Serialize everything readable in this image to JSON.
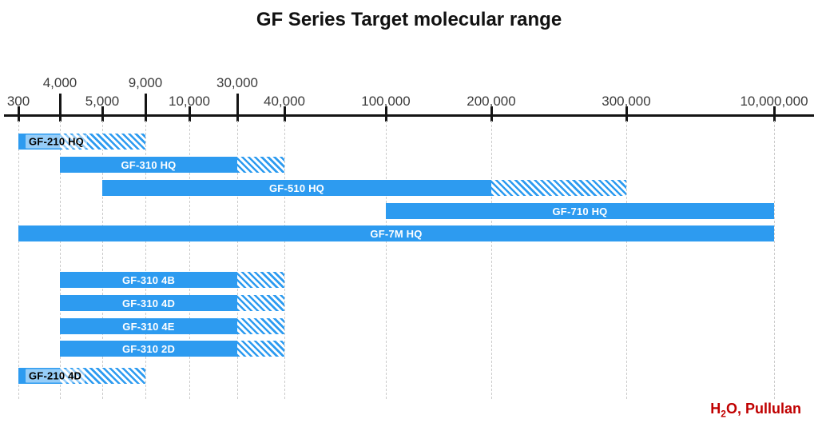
{
  "chart_data": {
    "type": "bar",
    "orientation": "horizontal-range",
    "title": "GF Series Target molecular range",
    "x_axis": {
      "scale": "log-like",
      "ticks": [
        {
          "label": "300",
          "value": 300,
          "label_row": "lower"
        },
        {
          "label": "4,000",
          "value": 4000,
          "label_row": "upper"
        },
        {
          "label": "5,000",
          "value": 5000,
          "label_row": "lower"
        },
        {
          "label": "9,000",
          "value": 9000,
          "label_row": "upper"
        },
        {
          "label": "10,000",
          "value": 10000,
          "label_row": "lower"
        },
        {
          "label": "30,000",
          "value": 30000,
          "label_row": "upper"
        },
        {
          "label": "40,000",
          "value": 40000,
          "label_row": "lower"
        },
        {
          "label": "100,000",
          "value": 100000,
          "label_row": "lower"
        },
        {
          "label": "200,000",
          "value": 200000,
          "label_row": "lower"
        },
        {
          "label": "300,000",
          "value": 300000,
          "label_row": "lower"
        },
        {
          "label": "10,000,000",
          "value": 10000000,
          "label_row": "lower"
        }
      ]
    },
    "series": [
      {
        "name": "GF-210 HQ",
        "solid_range": [
          300,
          4000
        ],
        "extended_range": [
          4000,
          9000
        ],
        "label_style": "dark",
        "group": 1
      },
      {
        "name": "GF-310 HQ",
        "solid_range": [
          4000,
          30000
        ],
        "extended_range": [
          30000,
          40000
        ],
        "label_style": "light",
        "group": 1
      },
      {
        "name": "GF-510 HQ",
        "solid_range": [
          5000,
          200000
        ],
        "extended_range": [
          200000,
          300000
        ],
        "label_style": "light",
        "group": 1
      },
      {
        "name": "GF-710 HQ",
        "solid_range": [
          100000,
          10000000
        ],
        "extended_range": null,
        "label_style": "light",
        "group": 1
      },
      {
        "name": "GF-7M HQ",
        "solid_range": [
          300,
          10000000
        ],
        "extended_range": null,
        "label_style": "light",
        "group": 1
      },
      {
        "name": "GF-310 4B",
        "solid_range": [
          4000,
          30000
        ],
        "extended_range": [
          30000,
          40000
        ],
        "label_style": "light",
        "group": 2
      },
      {
        "name": "GF-310 4D",
        "solid_range": [
          4000,
          30000
        ],
        "extended_range": [
          30000,
          40000
        ],
        "label_style": "light",
        "group": 2
      },
      {
        "name": "GF-310 4E",
        "solid_range": [
          4000,
          30000
        ],
        "extended_range": [
          30000,
          40000
        ],
        "label_style": "light",
        "group": 2
      },
      {
        "name": "GF-310 2D",
        "solid_range": [
          4000,
          30000
        ],
        "extended_range": [
          30000,
          40000
        ],
        "label_style": "light",
        "group": 2
      },
      {
        "name": "GF-210 4D",
        "solid_range": [
          300,
          4000
        ],
        "extended_range": [
          4000,
          9000
        ],
        "label_style": "dark",
        "group": 3
      }
    ],
    "annotation": {
      "prefix": "H",
      "sub": "2",
      "suffix": "O, Pullulan"
    },
    "colors": {
      "bar": "#2D9BF0",
      "annotation": "#C00000",
      "axis": "#141414",
      "gridline": "#CBCBCB",
      "bar_label_light": "#FFFFFF",
      "bar_label_dark": "#000000"
    },
    "grid": "vertical-dashed",
    "legend": null
  }
}
